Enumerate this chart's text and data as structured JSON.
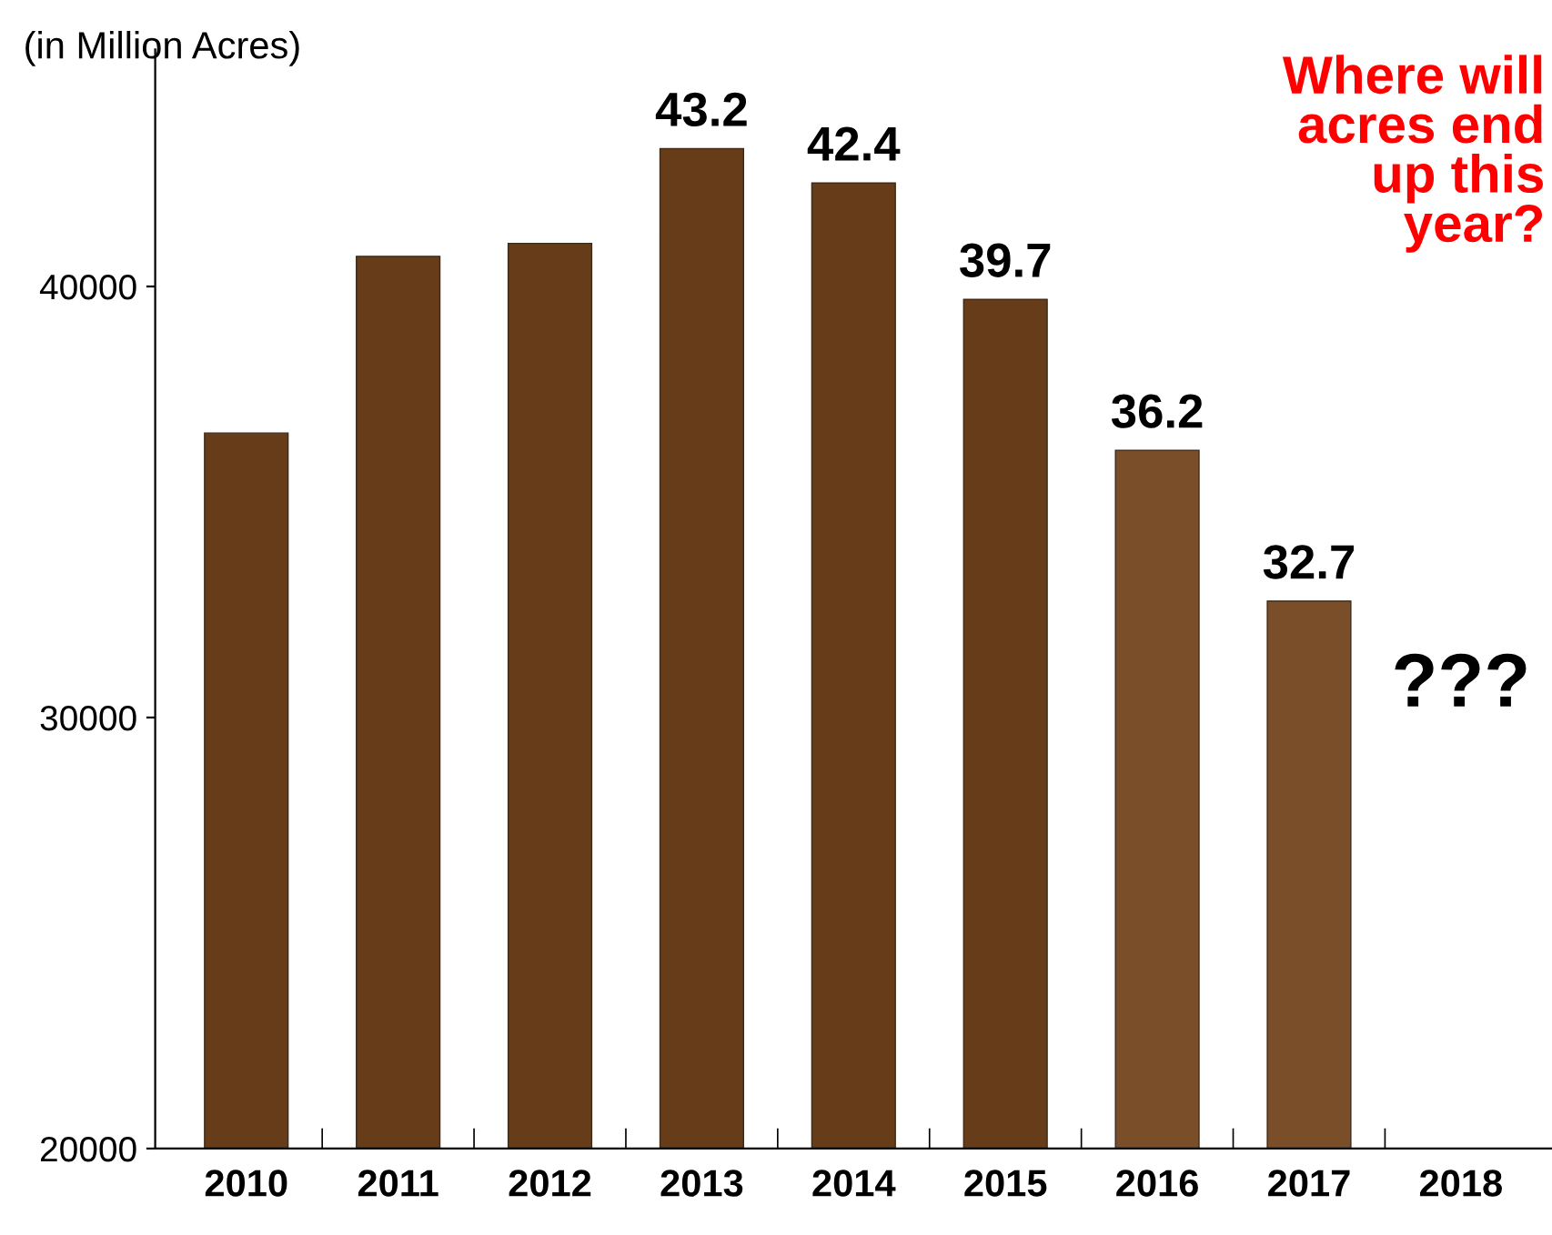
{
  "chart_data": {
    "type": "bar",
    "ylabel": "(in Million Acres)",
    "categories": [
      "2010",
      "2011",
      "2012",
      "2013",
      "2014",
      "2015",
      "2016",
      "2017",
      "2018"
    ],
    "values": [
      36600,
      40700,
      41000,
      43200,
      42400,
      39700,
      36200,
      32700,
      null
    ],
    "colors": [
      "#673c19",
      "#673c19",
      "#673c19",
      "#673c19",
      "#673c19",
      "#673c19",
      "#7a4e28",
      "#7a4e28",
      "#7a4e28"
    ],
    "ylim": [
      20000,
      45500
    ],
    "yticks": [
      20000,
      30000,
      40000
    ],
    "grid": false,
    "legend": false,
    "annotations": [
      {
        "text": "43.2",
        "x": "2013",
        "y": 43200
      },
      {
        "text": "42.4",
        "x": "2014",
        "y": 42400
      },
      {
        "text": "39.7",
        "x": "2015",
        "y": 39700
      },
      {
        "text": "36.2",
        "x": "2016",
        "y": 36200
      },
      {
        "text": "32.7",
        "x": "2017",
        "y": 32700
      },
      "???",
      "Where will\nacres end\nup this\nyear?"
    ]
  }
}
